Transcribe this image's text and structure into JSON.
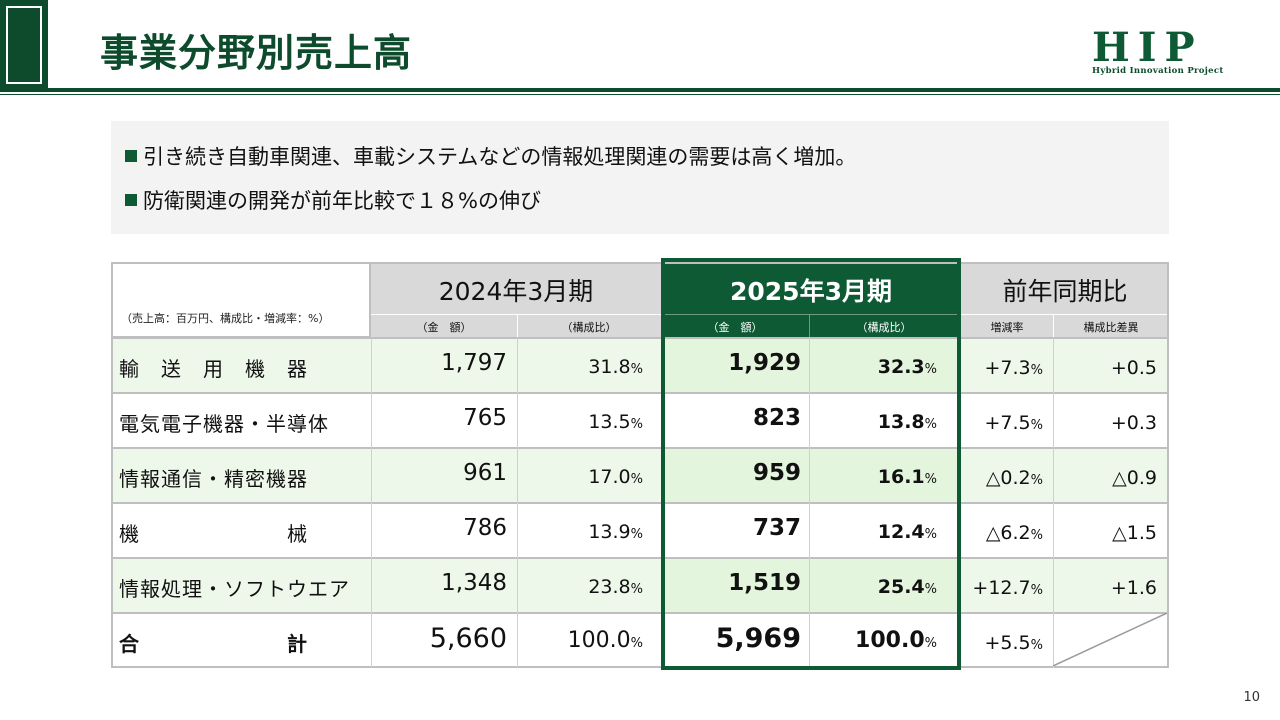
{
  "header": {
    "title": "事業分野別売上高",
    "logo_mark": "HIP",
    "logo_sub": "Hybrid Innovation Project"
  },
  "bullets": [
    "引き続き自動車関連、車載システムなどの情報処理関連の需要は高く増加。",
    "防衛関連の開発が前年比較で１８%の伸び"
  ],
  "table": {
    "unit_note": "（売上高：百万円、構成比・増減率：%）",
    "col_2024": "2024年3月期",
    "col_2025": "2025年3月期",
    "col_yoy": "前年同期比",
    "sub_amount": "（金　額）",
    "sub_ratio": "（構成比）",
    "sub_growth": "増減率",
    "sub_ratio_diff": "構成比差異",
    "pct_unit": "%",
    "rows": [
      {
        "label": "輸　送　用　機　器",
        "a2024": "1,797",
        "r2024": "31.8",
        "a2025": "1,929",
        "r2025": "32.3",
        "growth": "+7.3",
        "diff": "+0.5"
      },
      {
        "label": "電気電子機器・半導体",
        "a2024": "765",
        "r2024": "13.5",
        "a2025": "823",
        "r2025": "13.8",
        "growth": "+7.5",
        "diff": "+0.3"
      },
      {
        "label": "情報通信・精密機器",
        "a2024": "961",
        "r2024": "17.0",
        "a2025": "959",
        "r2025": "16.1",
        "growth": "△0.2",
        "diff": "△0.9"
      },
      {
        "label": "機　　　　　　　械",
        "a2024": "786",
        "r2024": "13.9",
        "a2025": "737",
        "r2025": "12.4",
        "growth": "△6.2",
        "diff": "△1.5"
      },
      {
        "label": "情報処理・ソフトウエア",
        "a2024": "1,348",
        "r2024": "23.8",
        "a2025": "1,519",
        "r2025": "25.4",
        "growth": "+12.7",
        "diff": "+1.6"
      },
      {
        "label": "合　　　　　　　計",
        "a2024": "5,660",
        "r2024": "100.0",
        "a2025": "5,969",
        "r2025": "100.0",
        "growth": "+5.5",
        "diff": ""
      }
    ]
  },
  "page_number": "10",
  "colors": {
    "brand_green": "#0d5a34",
    "row_tint": "#eef8ea",
    "highlight_tint": "#e3f5dc"
  }
}
